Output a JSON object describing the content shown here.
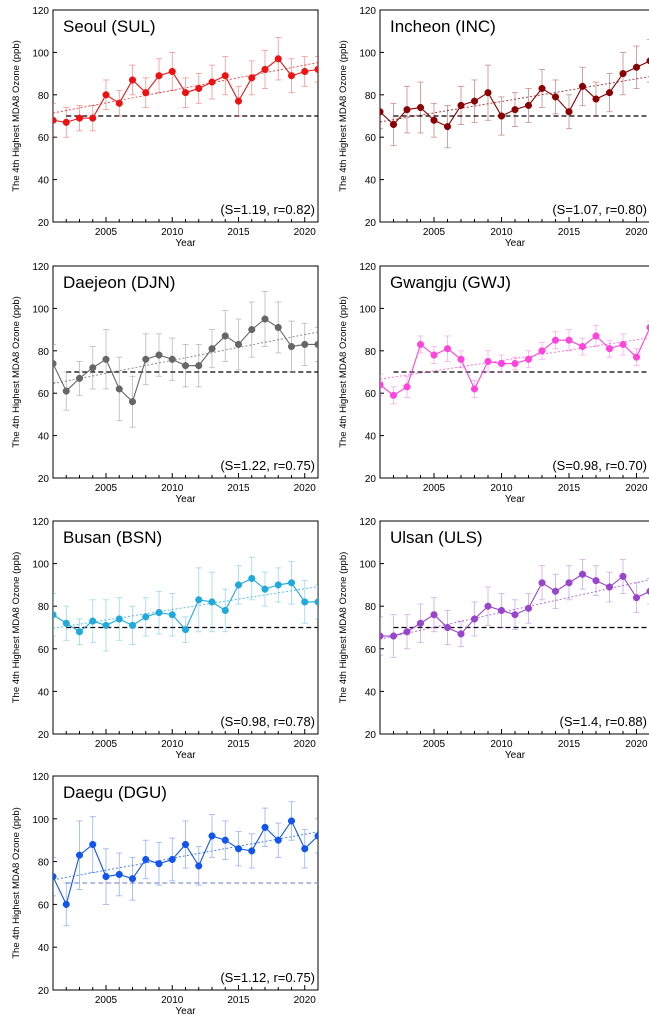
{
  "figure": {
    "ylabel": "The 4th Highest MDA8 Ozone (ppb)",
    "xlabel": "Year",
    "standard_line_value": 70
  },
  "chart_data": [
    {
      "type": "line",
      "title": "Seoul (SUL)",
      "stats": "(S=1.19,  r=0.82)",
      "color": "#ee1111",
      "ylim": [
        20,
        120
      ],
      "xlim": [
        2001,
        2021
      ],
      "yticks": [
        20,
        40,
        60,
        80,
        100,
        120
      ],
      "xticks": [
        2005,
        2010,
        2015,
        2020
      ],
      "x": [
        2001,
        2002,
        2003,
        2004,
        2005,
        2006,
        2007,
        2008,
        2009,
        2010,
        2011,
        2012,
        2013,
        2014,
        2015,
        2016,
        2017,
        2018,
        2019,
        2020,
        2021
      ],
      "values": [
        68,
        67,
        69,
        69,
        80,
        76,
        87,
        81,
        89,
        91,
        81,
        83,
        86,
        89,
        77,
        88,
        92,
        97,
        89,
        91,
        92
      ],
      "errors": [
        8,
        7,
        6,
        6,
        7,
        6,
        7,
        7,
        8,
        9,
        7,
        7,
        8,
        9,
        7,
        8,
        9,
        10,
        8,
        7,
        6
      ],
      "trend": [
        71.4,
        95.2
      ]
    },
    {
      "type": "line",
      "title": "Incheon (INC)",
      "stats": "(S=1.07,  r=0.80)",
      "color": "#8b0000",
      "ylim": [
        20,
        120
      ],
      "xlim": [
        2001,
        2021
      ],
      "yticks": [
        20,
        40,
        60,
        80,
        100,
        120
      ],
      "xticks": [
        2005,
        2010,
        2015,
        2020
      ],
      "x": [
        2001,
        2002,
        2003,
        2004,
        2005,
        2006,
        2007,
        2008,
        2009,
        2010,
        2011,
        2012,
        2013,
        2014,
        2015,
        2016,
        2017,
        2018,
        2019,
        2020,
        2021
      ],
      "values": [
        72,
        66,
        73,
        74,
        68,
        65,
        75,
        77,
        81,
        70,
        73,
        75,
        83,
        79,
        72,
        84,
        78,
        81,
        90,
        93,
        96
      ],
      "errors": [
        8,
        10,
        11,
        12,
        8,
        10,
        9,
        10,
        13,
        9,
        8,
        8,
        9,
        8,
        8,
        9,
        8,
        9,
        10,
        10,
        10
      ],
      "trend": [
        67.2,
        88.6
      ]
    },
    {
      "type": "line",
      "title": "Daejeon (DJN)",
      "stats": "(S=1.22,  r=0.75)",
      "color": "#666666",
      "ylim": [
        20,
        120
      ],
      "xlim": [
        2001,
        2021
      ],
      "yticks": [
        20,
        40,
        60,
        80,
        100,
        120
      ],
      "xticks": [
        2005,
        2010,
        2015,
        2020
      ],
      "x": [
        2001,
        2002,
        2003,
        2004,
        2005,
        2006,
        2007,
        2008,
        2009,
        2010,
        2011,
        2012,
        2013,
        2014,
        2015,
        2016,
        2017,
        2018,
        2019,
        2020,
        2021
      ],
      "values": [
        74,
        61,
        67,
        72,
        76,
        62,
        56,
        76,
        78,
        76,
        73,
        73,
        81,
        87,
        83,
        90,
        95,
        91,
        82,
        83,
        83
      ],
      "errors": [
        9,
        9,
        8,
        10,
        14,
        15,
        12,
        12,
        10,
        10,
        10,
        10,
        9,
        12,
        12,
        13,
        13,
        12,
        12,
        10,
        8
      ],
      "trend": [
        64.5,
        88.9
      ]
    },
    {
      "type": "line",
      "title": "Gwangju (GWJ)",
      "stats": "(S=0.98,  r=0.70)",
      "color": "#ff44dd",
      "ylim": [
        20,
        120
      ],
      "xlim": [
        2001,
        2021
      ],
      "yticks": [
        20,
        40,
        60,
        80,
        100,
        120
      ],
      "xticks": [
        2005,
        2010,
        2015,
        2020
      ],
      "x": [
        2001,
        2002,
        2003,
        2004,
        2005,
        2006,
        2007,
        2008,
        2009,
        2010,
        2011,
        2012,
        2013,
        2014,
        2015,
        2016,
        2017,
        2018,
        2019,
        2020,
        2021
      ],
      "values": [
        64,
        59,
        63,
        83,
        78,
        81,
        76,
        62,
        75,
        74,
        74,
        76,
        80,
        85,
        85,
        82,
        87,
        81,
        83,
        77,
        91
      ],
      "errors": [
        5,
        4,
        5,
        4,
        4,
        6,
        4,
        4,
        5,
        4,
        3,
        4,
        4,
        4,
        5,
        4,
        5,
        4,
        5,
        4,
        3
      ],
      "trend": [
        66.6,
        86.2
      ]
    },
    {
      "type": "line",
      "title": "Busan (BSN)",
      "stats": "(S=0.98,  r=0.78)",
      "color": "#1eaadd",
      "ylim": [
        20,
        120
      ],
      "xlim": [
        2001,
        2021
      ],
      "yticks": [
        20,
        40,
        60,
        80,
        100,
        120
      ],
      "xticks": [
        2005,
        2010,
        2015,
        2020
      ],
      "x": [
        2001,
        2002,
        2003,
        2004,
        2005,
        2006,
        2007,
        2008,
        2009,
        2010,
        2011,
        2012,
        2013,
        2014,
        2015,
        2016,
        2017,
        2018,
        2019,
        2020,
        2021
      ],
      "values": [
        76,
        72,
        68,
        73,
        71,
        74,
        71,
        75,
        77,
        76,
        69,
        83,
        82,
        78,
        90,
        93,
        88,
        90,
        91,
        82,
        82
      ],
      "errors": [
        10,
        8,
        6,
        10,
        12,
        10,
        9,
        9,
        10,
        10,
        6,
        15,
        14,
        10,
        9,
        10,
        8,
        8,
        10,
        10,
        8
      ],
      "trend": [
        69.6,
        89.2
      ]
    },
    {
      "type": "line",
      "title": "Ulsan (ULS)",
      "stats": "(S=1.4,  r=0.88)",
      "color": "#9944cc",
      "ylim": [
        20,
        120
      ],
      "xlim": [
        2001,
        2021
      ],
      "yticks": [
        20,
        40,
        60,
        80,
        100,
        120
      ],
      "xticks": [
        2005,
        2010,
        2015,
        2020
      ],
      "x": [
        2001,
        2002,
        2003,
        2004,
        2005,
        2006,
        2007,
        2008,
        2009,
        2010,
        2011,
        2012,
        2013,
        2014,
        2015,
        2016,
        2017,
        2018,
        2019,
        2020,
        2021
      ],
      "values": [
        66,
        66,
        68,
        72,
        76,
        70,
        67,
        74,
        80,
        78,
        76,
        79,
        91,
        87,
        91,
        95,
        92,
        89,
        94,
        84,
        87
      ],
      "errors": [
        9,
        10,
        8,
        9,
        8,
        8,
        6,
        8,
        9,
        8,
        7,
        7,
        8,
        8,
        8,
        7,
        7,
        7,
        8,
        7,
        6
      ],
      "trend": [
        64.5,
        92.5
      ]
    },
    {
      "type": "line",
      "title": "Daegu (DGU)",
      "stats": "(S=1.12,  r=0.75)",
      "color": "#1155ee",
      "ylim": [
        20,
        120
      ],
      "xlim": [
        2001,
        2021
      ],
      "yticks": [
        20,
        40,
        60,
        80,
        100,
        120
      ],
      "xticks": [
        2005,
        2010,
        2015,
        2020
      ],
      "x": [
        2001,
        2002,
        2003,
        2004,
        2005,
        2006,
        2007,
        2008,
        2009,
        2010,
        2011,
        2012,
        2013,
        2014,
        2015,
        2016,
        2017,
        2018,
        2019,
        2020,
        2021
      ],
      "values": [
        73,
        60,
        83,
        88,
        73,
        74,
        72,
        81,
        79,
        81,
        88,
        78,
        92,
        90,
        86,
        85,
        96,
        90,
        99,
        86,
        92
      ],
      "errors": [
        9,
        10,
        16,
        13,
        13,
        10,
        10,
        9,
        10,
        10,
        11,
        9,
        10,
        9,
        8,
        8,
        9,
        8,
        9,
        9,
        8
      ],
      "trend": [
        71.5,
        93.9
      ]
    }
  ]
}
